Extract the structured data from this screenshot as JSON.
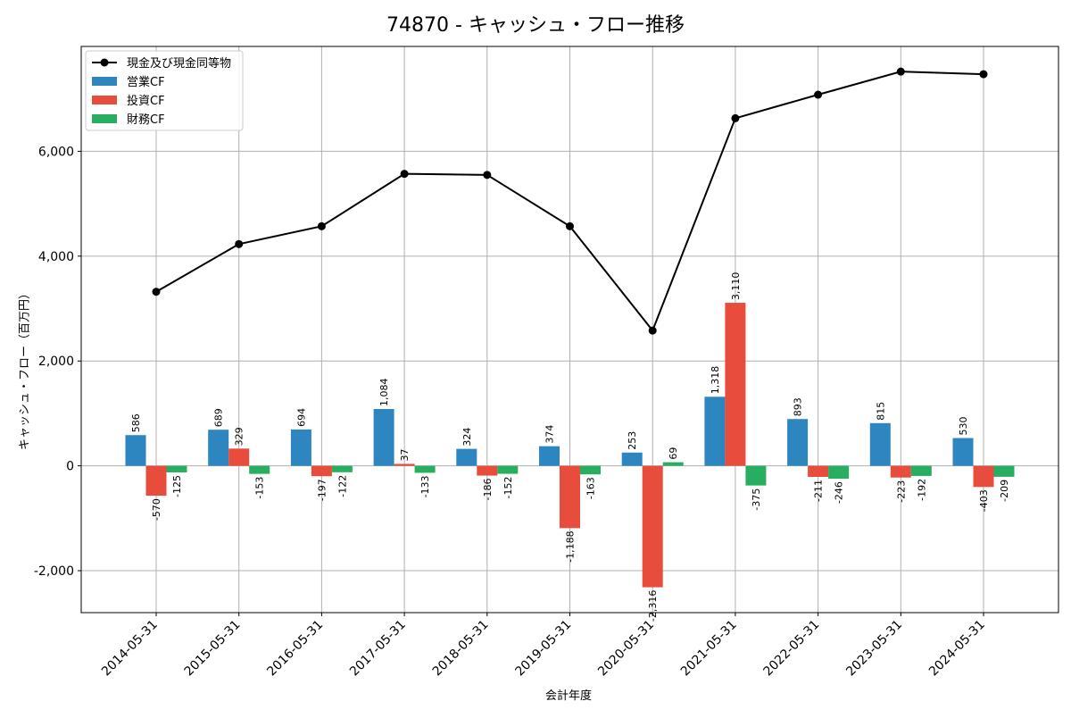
{
  "chart_data": {
    "type": "bar",
    "title": "74870 - キャッシュ・フロー推移",
    "xlabel": "会計年度",
    "ylabel": "キャッシュ・フロー（百万円）",
    "categories": [
      "2014-05-31",
      "2015-05-31",
      "2016-05-31",
      "2017-05-31",
      "2018-05-31",
      "2019-05-31",
      "2020-05-31",
      "2021-05-31",
      "2022-05-31",
      "2023-05-31",
      "2024-05-31"
    ],
    "ylim": [
      -2800,
      8000
    ],
    "yticks": [
      -2000,
      0,
      2000,
      4000,
      6000
    ],
    "ytick_labels": [
      "-2,000",
      "0",
      "2,000",
      "4,000",
      "6,000"
    ],
    "grid": true,
    "legend_position": "top-left",
    "series": [
      {
        "name": "営業CF",
        "kind": "bar",
        "color": "#2e86c1",
        "values": [
          586,
          689,
          694,
          1084,
          324,
          374,
          253,
          1318,
          893,
          815,
          530
        ],
        "labels": [
          "586",
          "689",
          "694",
          "1,084",
          "324",
          "374",
          "253",
          "1,318",
          "893",
          "815",
          "530"
        ]
      },
      {
        "name": "投資CF",
        "kind": "bar",
        "color": "#e74c3c",
        "values": [
          -570,
          329,
          -197,
          37,
          -186,
          -1188,
          -2316,
          3110,
          -211,
          -223,
          -403
        ],
        "labels": [
          "-570",
          "329",
          "-197",
          "37",
          "-186",
          "-1,188",
          "-2,316",
          "3,110",
          "-211",
          "-223",
          "-403"
        ]
      },
      {
        "name": "財務CF",
        "kind": "bar",
        "color": "#27ae60",
        "values": [
          -125,
          -153,
          -122,
          -133,
          -152,
          -163,
          69,
          -375,
          -246,
          -192,
          -209
        ],
        "labels": [
          "-125",
          "-153",
          "-122",
          "-133",
          "-152",
          "-163",
          "69",
          "-375",
          "-246",
          "-192",
          "-209"
        ]
      },
      {
        "name": "現金及び現金同等物",
        "kind": "line",
        "color": "#000000",
        "values": [
          3320,
          4230,
          4570,
          5570,
          5550,
          4570,
          2580,
          6630,
          7080,
          7520,
          7470
        ]
      }
    ]
  }
}
